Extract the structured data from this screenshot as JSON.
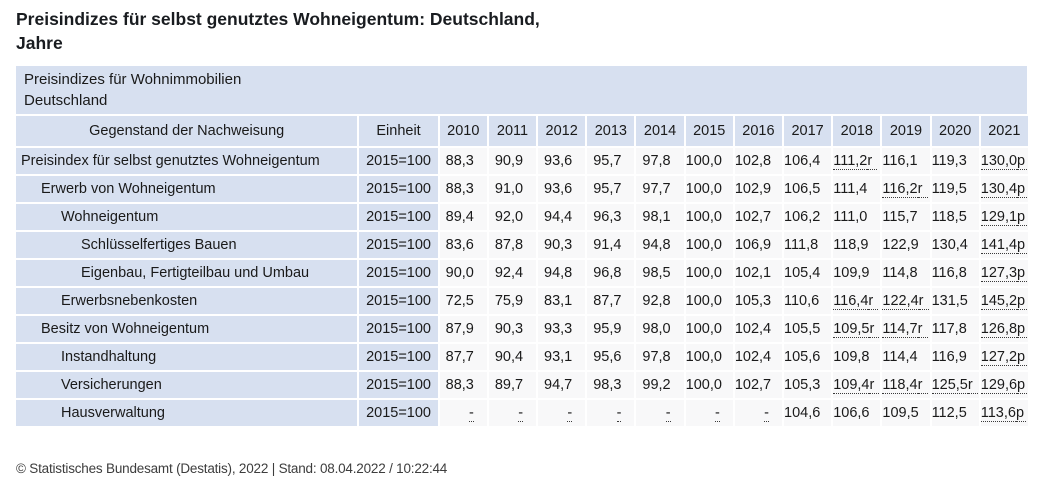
{
  "page_title": "Preisindizes für selbst genutztes Wohneigentum: Deutschland,\nJahre",
  "caption": {
    "line1": "Preisindizes für Wohnimmobilien",
    "line2": "Deutschland"
  },
  "table": {
    "subject_header": "Gegenstand der Nachweisung",
    "unit_header": "Einheit",
    "years": [
      "2010",
      "2011",
      "2012",
      "2013",
      "2014",
      "2015",
      "2016",
      "2017",
      "2018",
      "2019",
      "2020",
      "2021"
    ],
    "unit_value": "2015=100",
    "rows": [
      {
        "label": "Preisindex für selbst genutztes Wohneigentum",
        "indent": 0,
        "values": [
          "88,3",
          "90,9",
          "93,6",
          "95,7",
          "97,8",
          "100,0",
          "102,8",
          "106,4",
          "111,2r",
          "116,1",
          "119,3",
          "130,0p"
        ]
      },
      {
        "label": "Erwerb von Wohneigentum",
        "indent": 1,
        "values": [
          "88,3",
          "91,0",
          "93,6",
          "95,7",
          "97,7",
          "100,0",
          "102,9",
          "106,5",
          "111,4",
          "116,2r",
          "119,5",
          "130,4p"
        ]
      },
      {
        "label": "Wohneigentum",
        "indent": 2,
        "values": [
          "89,4",
          "92,0",
          "94,4",
          "96,3",
          "98,1",
          "100,0",
          "102,7",
          "106,2",
          "111,0",
          "115,7",
          "118,5",
          "129,1p"
        ]
      },
      {
        "label": "Schlüsselfertiges Bauen",
        "indent": 3,
        "values": [
          "83,6",
          "87,8",
          "90,3",
          "91,4",
          "94,8",
          "100,0",
          "106,9",
          "111,8",
          "118,9",
          "122,9",
          "130,4",
          "141,4p"
        ]
      },
      {
        "label": "Eigenbau, Fertigteilbau und Umbau",
        "indent": 3,
        "values": [
          "90,0",
          "92,4",
          "94,8",
          "96,8",
          "98,5",
          "100,0",
          "102,1",
          "105,4",
          "109,9",
          "114,8",
          "116,8",
          "127,3p"
        ]
      },
      {
        "label": "Erwerbsnebenkosten",
        "indent": 2,
        "values": [
          "72,5",
          "75,9",
          "83,1",
          "87,7",
          "92,8",
          "100,0",
          "105,3",
          "110,6",
          "116,4r",
          "122,4r",
          "131,5",
          "145,2p"
        ]
      },
      {
        "label": "Besitz von Wohneigentum",
        "indent": 1,
        "values": [
          "87,9",
          "90,3",
          "93,3",
          "95,9",
          "98,0",
          "100,0",
          "102,4",
          "105,5",
          "109,5r",
          "114,7r",
          "117,8",
          "126,8p"
        ]
      },
      {
        "label": "Instandhaltung",
        "indent": 2,
        "values": [
          "87,7",
          "90,4",
          "93,1",
          "95,6",
          "97,8",
          "100,0",
          "102,4",
          "105,6",
          "109,8",
          "114,4",
          "116,9",
          "127,2p"
        ]
      },
      {
        "label": "Versicherungen",
        "indent": 2,
        "values": [
          "88,3",
          "89,7",
          "94,7",
          "98,3",
          "99,2",
          "100,0",
          "102,7",
          "105,3",
          "109,4r",
          "118,4r",
          "125,5r",
          "129,6p"
        ]
      },
      {
        "label": "Hausverwaltung",
        "indent": 2,
        "values": [
          "-",
          "-",
          "-",
          "-",
          "-",
          "-",
          "-",
          "104,6",
          "106,6",
          "109,5",
          "112,5",
          "113,6p"
        ]
      }
    ]
  },
  "footer": {
    "copyright": "© Statistisches Bundesamt (Destatis), 2022 | Stand: 08.04.2022 / 10:22:44"
  },
  "colors": {
    "header_bg": "#d7e0f0",
    "data_cell_bg": "#f8f8f9",
    "page_bg": "#ffffff",
    "text": "#1a1a1a",
    "footer_text": "#3d3d3d",
    "flag_underline": "#3a3a3a"
  }
}
